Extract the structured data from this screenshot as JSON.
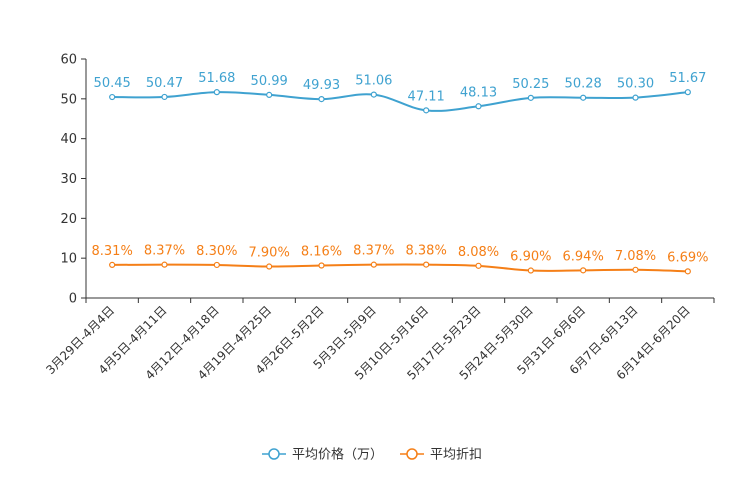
{
  "chart_data": {
    "type": "line",
    "categories": [
      "3月29日-4月4日",
      "4月5日-4月11日",
      "4月12日-4月18日",
      "4月19日-4月25日",
      "4月26日-5月2日",
      "5月3日-5月9日",
      "5月10日-5月16日",
      "5月17日-5月23日",
      "5月24日-5月30日",
      "5月31日-6月6日",
      "6月7日-6月13日",
      "6月14日-6月20日"
    ],
    "series": [
      {
        "name": "平均价格（万）",
        "color": "#3fa2d0",
        "values": [
          50.45,
          50.47,
          51.68,
          50.99,
          49.93,
          51.06,
          47.11,
          48.13,
          50.25,
          50.28,
          50.3,
          51.67
        ],
        "labels": [
          "50.45",
          "50.47",
          "51.68",
          "50.99",
          "49.93",
          "51.06",
          "47.11",
          "48.13",
          "50.25",
          "50.28",
          "50.30",
          "51.67"
        ]
      },
      {
        "name": "平均折扣",
        "color": "#f57f17",
        "values": [
          8.31,
          8.37,
          8.3,
          7.9,
          8.16,
          8.37,
          8.38,
          8.08,
          6.9,
          6.94,
          7.08,
          6.69
        ],
        "labels": [
          "8.31%",
          "8.37%",
          "8.30%",
          "7.90%",
          "8.16%",
          "8.37%",
          "8.38%",
          "8.08%",
          "6.90%",
          "6.94%",
          "7.08%",
          "6.69%"
        ]
      }
    ],
    "yticks": [
      0,
      10,
      20,
      30,
      40,
      50,
      60
    ],
    "ylim": [
      0,
      60
    ],
    "title": "",
    "xlabel": "",
    "ylabel": "",
    "legend_position": "bottom-center"
  }
}
